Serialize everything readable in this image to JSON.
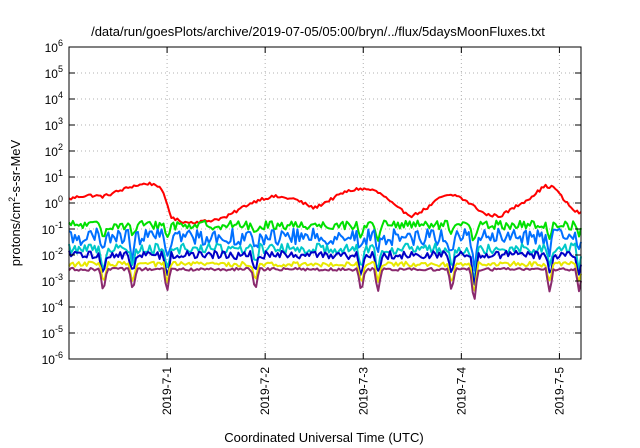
{
  "chart_data": {
    "type": "line",
    "title": "/data/run/goesPlots/archive/2019-07-05/05:00/bryn/../flux/5daysMoonFluxes.txt",
    "xlabel": "Coordinated Universal Time (UTC)",
    "ylabel": "protons/cm²-s-sr-MeV",
    "ylabel_parts": {
      "before": "protons/cm",
      "sup": "2",
      "after": "-s-sr-MeV"
    },
    "yscale": "log",
    "ylim_exponents": [
      -6,
      6
    ],
    "y_tick_labels": [
      {
        "base": "10",
        "exp": "-6"
      },
      {
        "base": "10",
        "exp": "-5"
      },
      {
        "base": "10",
        "exp": "-4"
      },
      {
        "base": "10",
        "exp": "-3"
      },
      {
        "base": "10",
        "exp": "-2"
      },
      {
        "base": "10",
        "exp": "-1"
      },
      {
        "base": "10",
        "exp": "0"
      },
      {
        "base": "10",
        "exp": "1"
      },
      {
        "base": "10",
        "exp": "2"
      },
      {
        "base": "10",
        "exp": "3"
      },
      {
        "base": "10",
        "exp": "4"
      },
      {
        "base": "10",
        "exp": "5"
      },
      {
        "base": "10",
        "exp": "6"
      }
    ],
    "xlim_days": [
      0.0,
      5.22
    ],
    "x_ticks": [
      {
        "label": "2019-7-1",
        "day": 1.0
      },
      {
        "label": "2019-7-2",
        "day": 2.0
      },
      {
        "label": "2019-7-3",
        "day": 3.0
      },
      {
        "label": "2019-7-4",
        "day": 4.0
      },
      {
        "label": "2019-7-5",
        "day": 5.0
      }
    ],
    "grid": true,
    "series": [
      {
        "color": "#ff0000",
        "log_x": [
          0.0,
          0.1,
          0.2,
          0.35,
          0.5,
          0.65,
          0.8,
          0.9,
          0.97,
          1.05,
          1.2,
          1.4,
          1.6,
          1.8,
          1.95,
          2.1,
          2.3,
          2.5,
          2.65,
          2.8,
          2.95,
          3.1,
          3.2,
          3.35,
          3.5,
          3.65,
          3.8,
          3.95,
          4.1,
          4.25,
          4.4,
          4.55,
          4.7,
          4.85,
          4.95,
          5.05,
          5.15,
          5.22
        ],
        "log_y": [
          0.15,
          0.25,
          0.3,
          0.25,
          0.45,
          0.65,
          0.75,
          0.7,
          0.3,
          -0.6,
          -0.75,
          -0.7,
          -0.55,
          -0.1,
          0.15,
          0.25,
          0.15,
          -0.2,
          0.1,
          0.4,
          0.55,
          0.5,
          0.3,
          -0.2,
          -0.5,
          -0.2,
          0.25,
          0.3,
          -0.05,
          -0.45,
          -0.5,
          -0.15,
          0.2,
          0.65,
          0.6,
          0.1,
          -0.3,
          -0.4
        ],
        "jitter": 0.12
      },
      {
        "color": "#00e000",
        "base": -0.85,
        "dip_depth": 0.45,
        "jitter": 0.22
      },
      {
        "color": "#0070ff",
        "base": -1.3,
        "dip_depth": 0.7,
        "jitter": 0.4
      },
      {
        "color": "#00c8c8",
        "base": -1.75,
        "dip_depth": 0.7,
        "jitter": 0.25
      },
      {
        "color": "#0000c8",
        "base": -2.0,
        "dip_depth": 0.75,
        "jitter": 0.2
      },
      {
        "color": "#e8e800",
        "base": -2.35,
        "dip_depth": 0.7,
        "jitter": 0.12
      },
      {
        "color": "#8a2a6e",
        "base": -2.55,
        "dip_depth": 0.8,
        "jitter": 0.07
      }
    ],
    "dip_days": [
      0.35,
      0.65,
      1.0,
      1.9,
      2.98,
      3.15,
      3.9,
      4.13,
      4.9,
      5.2
    ]
  }
}
